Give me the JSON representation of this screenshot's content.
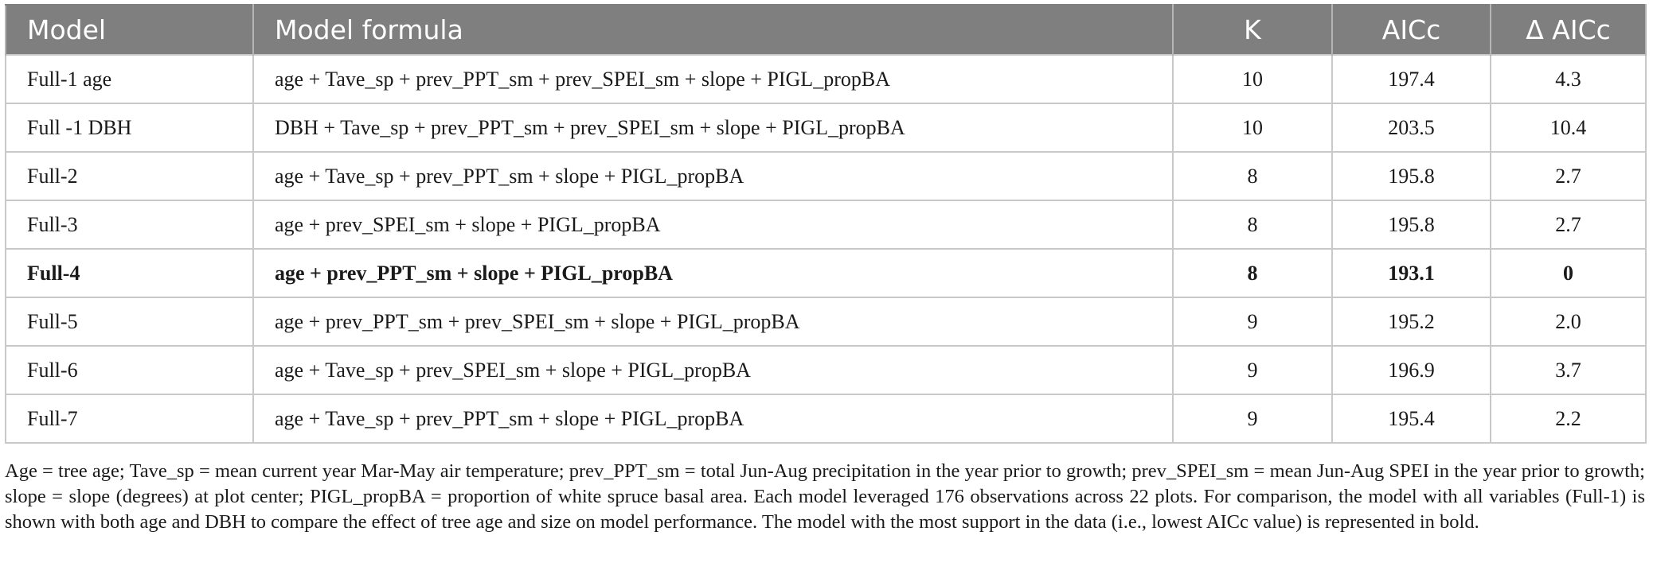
{
  "table": {
    "headers": [
      "Model",
      "Model formula",
      "K",
      "AICc",
      "Δ AICc"
    ],
    "rows": [
      {
        "model": "Full-1 age",
        "formula": "age + Tave_sp + prev_PPT_sm + prev_SPEI_sm + slope + PIGL_propBA",
        "k": "10",
        "aicc": "197.4",
        "daicc": "4.3",
        "bold": false
      },
      {
        "model": "Full -1 DBH",
        "formula": "DBH + Tave_sp + prev_PPT_sm + prev_SPEI_sm + slope + PIGL_propBA",
        "k": "10",
        "aicc": "203.5",
        "daicc": "10.4",
        "bold": false
      },
      {
        "model": "Full-2",
        "formula": "age + Tave_sp + prev_PPT_sm + slope + PIGL_propBA",
        "k": "8",
        "aicc": "195.8",
        "daicc": "2.7",
        "bold": false
      },
      {
        "model": "Full-3",
        "formula": "age + prev_SPEI_sm + slope + PIGL_propBA",
        "k": "8",
        "aicc": "195.8",
        "daicc": "2.7",
        "bold": false
      },
      {
        "model": "Full-4",
        "formula": "age + prev_PPT_sm + slope + PIGL_propBA",
        "k": "8",
        "aicc": "193.1",
        "daicc": "0",
        "bold": true
      },
      {
        "model": "Full-5",
        "formula": "age + prev_PPT_sm + prev_SPEI_sm + slope + PIGL_propBA",
        "k": "9",
        "aicc": "195.2",
        "daicc": "2.0",
        "bold": false
      },
      {
        "model": "Full-6",
        "formula": "age + Tave_sp + prev_SPEI_sm + slope + PIGL_propBA",
        "k": "9",
        "aicc": "196.9",
        "daicc": "3.7",
        "bold": false
      },
      {
        "model": "Full-7",
        "formula": "age + Tave_sp + prev_PPT_sm + slope + PIGL_propBA",
        "k": "9",
        "aicc": "195.4",
        "daicc": "2.2",
        "bold": false
      }
    ]
  },
  "caption": "Age = tree age; Tave_sp = mean current year Mar-May air temperature; prev_PPT_sm = total Jun-Aug precipitation in the year prior to growth; prev_SPEI_sm = mean Jun-Aug SPEI in the year prior to growth; slope = slope (degrees) at plot center; PIGL_propBA = proportion of white spruce basal area. Each model leveraged 176 observations across 22 plots. For comparison, the model with all variables (Full-1) is shown with both age and DBH to compare the effect of tree age and size on model performance. The model with the most support in the data (i.e., lowest AICc value) is represented in bold.",
  "colors": {
    "header_bg": "#7f7f7f",
    "header_text": "#ffffff",
    "grid": "#c8c8c8"
  }
}
